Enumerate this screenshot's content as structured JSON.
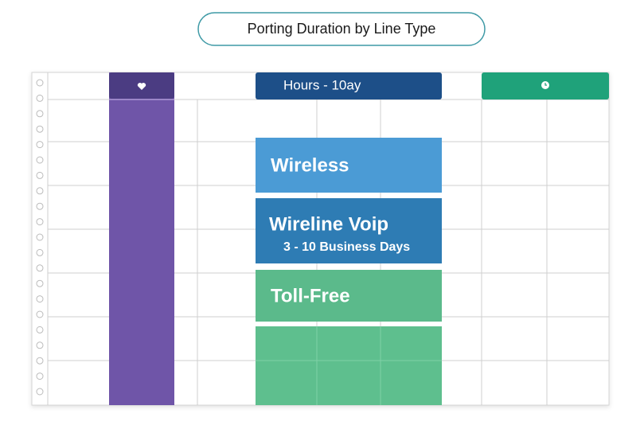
{
  "header": {
    "title": "Porting Duration by Line Type"
  },
  "calendar": {
    "column_header": "Hours - 10ay",
    "blocks": [
      {
        "label": "Wireless"
      },
      {
        "label": "Wireline Voip",
        "detail": "3 -  10 Business Days"
      },
      {
        "label": "Toll-Free"
      }
    ]
  }
}
